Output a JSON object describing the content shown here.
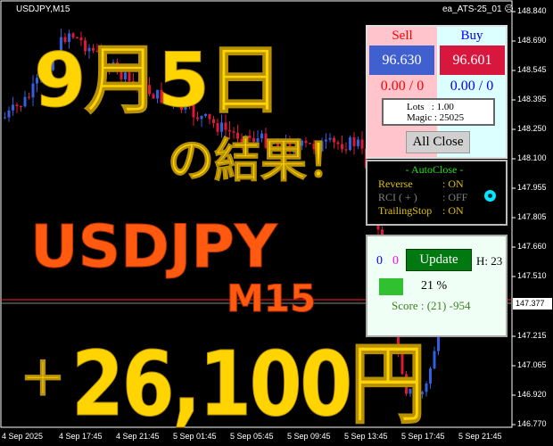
{
  "chart": {
    "symbol": "USDJPY,M15",
    "ea_name": "ea_ATS-25_01",
    "ea_status_icon": "sad-face-icon",
    "price_axis": [
      "148.840",
      "148.690",
      "148.545",
      "148.395",
      "148.250",
      "148.100",
      "147.955",
      "147.805",
      "147.660",
      "147.510",
      "147.215",
      "147.065",
      "146.920",
      "146.770"
    ],
    "current_price": "147.377",
    "time_axis": [
      "4 Sep 2025",
      "4 Sep 17:45",
      "4 Sep 21:45",
      "5 Sep 01:45",
      "5 Sep 05:45",
      "5 Sep 09:45",
      "5 Sep 13:45",
      "5 Sep 17:45",
      "5 Sep 21:45"
    ],
    "colors": {
      "bull": "#3060e0",
      "bear": "#e01838",
      "grid": "#ffffff"
    }
  },
  "overlay": {
    "date": "9月5日",
    "result": "の結果！",
    "pair": "USDJPY",
    "timeframe": "M15",
    "plus": "＋",
    "profit": "26,100円"
  },
  "trade_panel": {
    "sell_label": "Sell",
    "buy_label": "Buy",
    "sell_price": "96.630",
    "buy_price": "96.601",
    "sell_pl": "0.00 / 0",
    "buy_pl": "0.00 / 0",
    "lots": "Lots   : 1.00",
    "magic": "Magic : 25025",
    "all_close": "All Close"
  },
  "auto_panel": {
    "title": "- AutoClose -",
    "rows": [
      {
        "label": "Reverse",
        "value": ": ON",
        "color": "#e0c000"
      },
      {
        "label": "RCI  ( + )",
        "value": ": OFF",
        "color": "#808080"
      },
      {
        "label": "TrailingStop",
        "value": ": ON",
        "color": "#e0c000"
      }
    ],
    "indicator": "toggle-circle-icon"
  },
  "score_panel": {
    "count_blue": "0",
    "count_magenta": "0",
    "update": "Update",
    "hour": "H: 23",
    "percent": "21 %",
    "score": "Score : (21) -954"
  }
}
